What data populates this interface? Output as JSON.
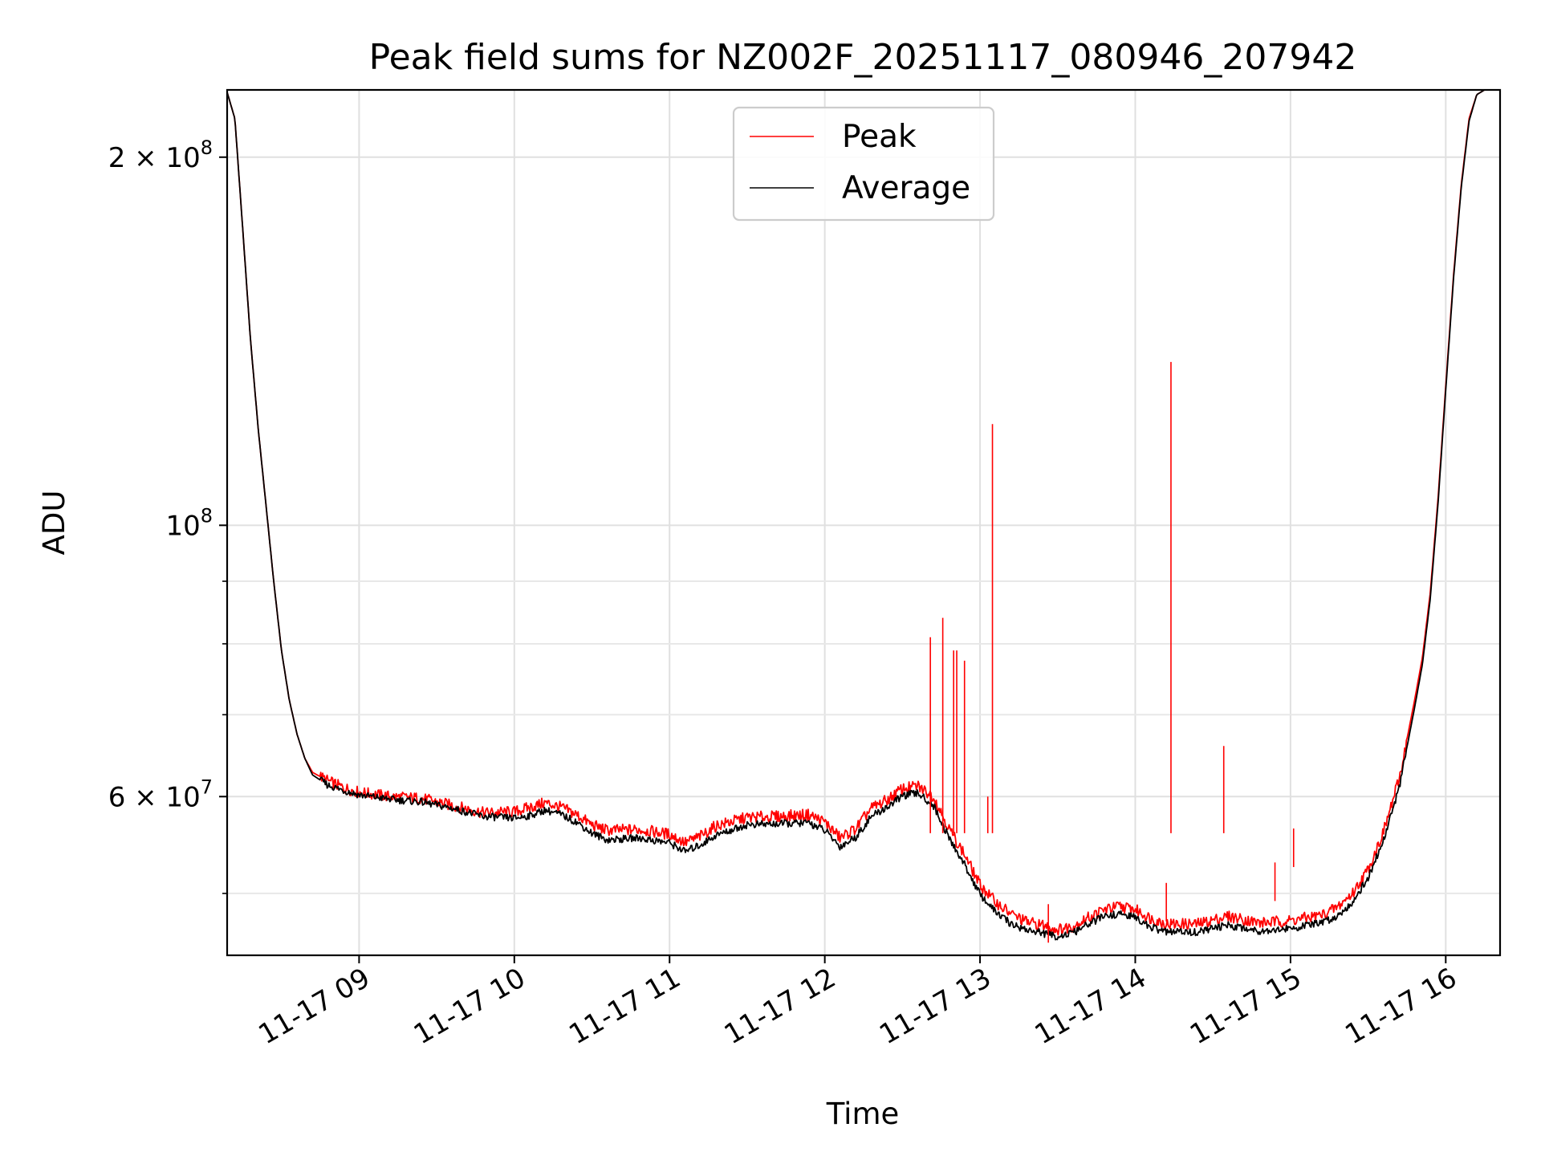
{
  "chart_data": {
    "type": "line",
    "title": "Peak field sums for NZ002F_20251117_080946_207942",
    "xlabel": "Time",
    "ylabel": "ADU",
    "yscale": "log",
    "xlim": [
      8.15,
      16.35
    ],
    "ylim": [
      44500000,
      227000000
    ],
    "grid": true,
    "legend_position": "top-center",
    "x_ticks": [
      {
        "value": 9,
        "label": "11-17 09"
      },
      {
        "value": 10,
        "label": "11-17 10"
      },
      {
        "value": 11,
        "label": "11-17 11"
      },
      {
        "value": 12,
        "label": "11-17 12"
      },
      {
        "value": 13,
        "label": "11-17 13"
      },
      {
        "value": 14,
        "label": "11-17 14"
      },
      {
        "value": 15,
        "label": "11-17 15"
      },
      {
        "value": 16,
        "label": "11-17 16"
      }
    ],
    "y_ticks": [
      {
        "value": 200000000,
        "base": "2 × 10",
        "exp": "8"
      },
      {
        "value": 100000000,
        "base": "10",
        "exp": "8"
      },
      {
        "value": 60000000,
        "base": "6 × 10",
        "exp": "7"
      }
    ],
    "y_minor_ticks": [
      50000000,
      70000000,
      80000000,
      90000000
    ],
    "series": [
      {
        "name": "Peak",
        "color": "#ff0000",
        "x": [
          8.15,
          8.2,
          8.25,
          8.3,
          8.35,
          8.4,
          8.45,
          8.5,
          8.55,
          8.6,
          8.65,
          8.7,
          8.8,
          8.9,
          9.0,
          9.2,
          9.4,
          9.6,
          9.8,
          10.0,
          10.1,
          10.2,
          10.3,
          10.4,
          10.5,
          10.6,
          10.8,
          11.0,
          11.1,
          11.2,
          11.3,
          11.5,
          11.7,
          11.9,
          12.0,
          12.1,
          12.2,
          12.3,
          12.4,
          12.5,
          12.6,
          12.7,
          12.8,
          12.9,
          13.0,
          13.1,
          13.2,
          13.3,
          13.4,
          13.5,
          13.6,
          13.7,
          13.8,
          13.9,
          14.0,
          14.1,
          14.2,
          14.4,
          14.6,
          14.8,
          15.0,
          15.2,
          15.3,
          15.4,
          15.5,
          15.6,
          15.7,
          15.8,
          15.85,
          15.9,
          15.95,
          16.0,
          16.05,
          16.1,
          16.15,
          16.2,
          16.25,
          16.3,
          16.35
        ],
        "values": [
          226000000,
          215000000,
          175000000,
          142000000,
          120000000,
          104000000,
          90000000,
          79000000,
          72000000,
          67500000,
          64500000,
          62800000,
          61800000,
          61000000,
          60500000,
          60000000,
          59800000,
          59000000,
          58200000,
          58300000,
          58800000,
          59300000,
          58800000,
          58000000,
          56900000,
          56300000,
          56400000,
          55900000,
          55000000,
          55700000,
          56800000,
          57700000,
          57800000,
          58000000,
          57200000,
          55500000,
          56500000,
          58700000,
          59600000,
          60900000,
          61200000,
          60000000,
          56500000,
          53800000,
          50800000,
          49200000,
          48100000,
          47400000,
          47100000,
          46700000,
          47000000,
          47800000,
          48500000,
          48800000,
          48500000,
          47700000,
          47200000,
          47200000,
          47900000,
          47300000,
          47500000,
          48000000,
          48700000,
          50000000,
          52300000,
          56200000,
          62000000,
          72000000,
          78000000,
          88000000,
          105000000,
          130000000,
          160000000,
          190000000,
          215000000,
          225000000,
          227000000,
          227000000,
          227000000
        ]
      },
      {
        "name": "Average",
        "color": "#000000",
        "x": [
          8.15,
          8.2,
          8.25,
          8.3,
          8.35,
          8.4,
          8.45,
          8.5,
          8.55,
          8.6,
          8.65,
          8.7,
          8.8,
          8.9,
          9.0,
          9.2,
          9.4,
          9.6,
          9.8,
          10.0,
          10.1,
          10.2,
          10.3,
          10.4,
          10.5,
          10.6,
          10.8,
          11.0,
          11.1,
          11.2,
          11.3,
          11.5,
          11.7,
          11.9,
          12.0,
          12.1,
          12.2,
          12.3,
          12.4,
          12.5,
          12.6,
          12.7,
          12.8,
          12.9,
          13.0,
          13.1,
          13.2,
          13.3,
          13.4,
          13.5,
          13.6,
          13.7,
          13.8,
          13.9,
          14.0,
          14.1,
          14.2,
          14.4,
          14.6,
          14.8,
          15.0,
          15.2,
          15.3,
          15.4,
          15.5,
          15.6,
          15.7,
          15.8,
          15.85,
          15.9,
          15.95,
          16.0,
          16.05,
          16.1,
          16.15,
          16.2,
          16.25,
          16.3,
          16.35
        ],
        "values": [
          226000000,
          215000000,
          175000000,
          142000000,
          120000000,
          104000000,
          90000000,
          79000000,
          72000000,
          67500000,
          64500000,
          62500000,
          61300000,
          60700000,
          60200000,
          59700000,
          59400000,
          58700000,
          57800000,
          57600000,
          57900000,
          58500000,
          58000000,
          57200000,
          56000000,
          55300000,
          55500000,
          55000000,
          54100000,
          54800000,
          55800000,
          56900000,
          57000000,
          57100000,
          56300000,
          54600000,
          55600000,
          57800000,
          58800000,
          60100000,
          60400000,
          59000000,
          55500000,
          52800000,
          49900000,
          48300000,
          47200000,
          46700000,
          46400000,
          46100000,
          46400000,
          47200000,
          47900000,
          48100000,
          47800000,
          46900000,
          46500000,
          46500000,
          47100000,
          46600000,
          46800000,
          47300000,
          47900000,
          49200000,
          51500000,
          55300000,
          61000000,
          71000000,
          77000000,
          87000000,
          104000000,
          129000000,
          159000000,
          189000000,
          214000000,
          225000000,
          227000000,
          227000000,
          227000000
        ]
      }
    ],
    "peak_spikes": [
      {
        "x": 12.68,
        "value": 81000000
      },
      {
        "x": 12.76,
        "value": 84000000
      },
      {
        "x": 12.83,
        "value": 79000000
      },
      {
        "x": 12.85,
        "value": 79000000
      },
      {
        "x": 12.9,
        "value": 77500000
      },
      {
        "x": 13.05,
        "value": 60000000
      },
      {
        "x": 13.08,
        "value": 121000000
      },
      {
        "x": 13.44,
        "value": 49000000
      },
      {
        "x": 14.2,
        "value": 51000000
      },
      {
        "x": 14.23,
        "value": 136000000
      },
      {
        "x": 14.57,
        "value": 66000000
      },
      {
        "x": 14.9,
        "value": 53000000
      },
      {
        "x": 15.02,
        "value": 56500000
      }
    ]
  }
}
